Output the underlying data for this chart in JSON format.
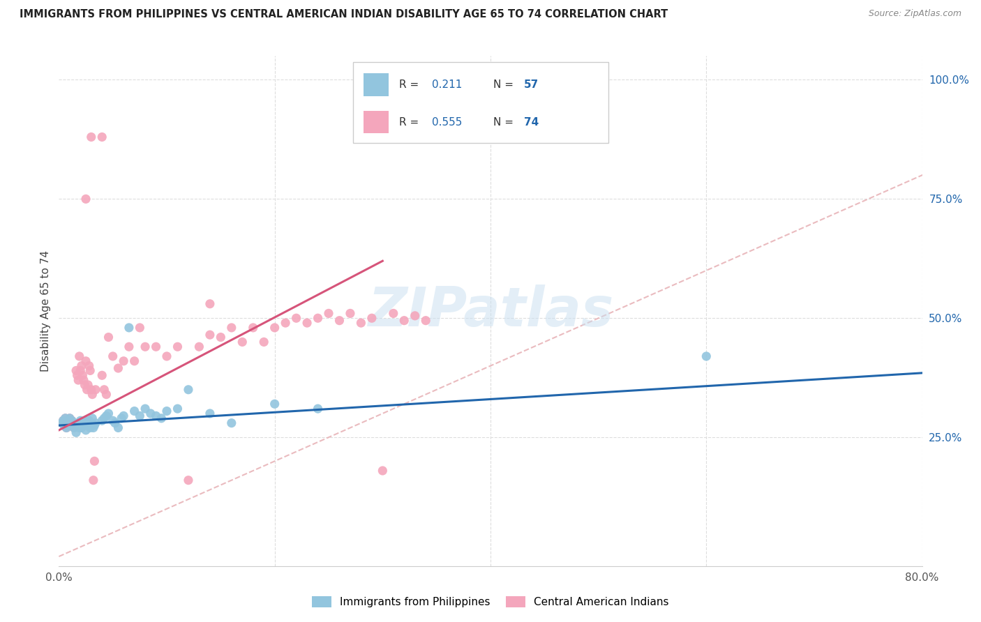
{
  "title": "IMMIGRANTS FROM PHILIPPINES VS CENTRAL AMERICAN INDIAN DISABILITY AGE 65 TO 74 CORRELATION CHART",
  "source": "Source: ZipAtlas.com",
  "ylabel": "Disability Age 65 to 74",
  "xlim": [
    0.0,
    0.8
  ],
  "ylim": [
    -0.02,
    1.05
  ],
  "xticks": [
    0.0,
    0.2,
    0.4,
    0.6,
    0.8
  ],
  "xticklabels": [
    "0.0%",
    "",
    "",
    "",
    "80.0%"
  ],
  "yticks_right": [
    0.25,
    0.5,
    0.75,
    1.0
  ],
  "ytick_labels_right": [
    "25.0%",
    "50.0%",
    "75.0%",
    "100.0%"
  ],
  "blue_R": 0.211,
  "blue_N": 57,
  "pink_R": 0.555,
  "pink_N": 74,
  "blue_color": "#92c5de",
  "pink_color": "#f4a6bc",
  "blue_line_color": "#2166ac",
  "pink_line_color": "#d6547a",
  "diagonal_color": "#e8b4b8",
  "watermark_color": "#c8dff0",
  "legend_label_blue": "Immigrants from Philippines",
  "legend_label_pink": "Central American Indians",
  "blue_line_start_y": 0.275,
  "blue_line_end_y": 0.385,
  "pink_line_start_y": 0.265,
  "pink_line_end_y": 0.62,
  "blue_points_x": [
    0.003,
    0.004,
    0.005,
    0.006,
    0.007,
    0.008,
    0.009,
    0.01,
    0.01,
    0.011,
    0.012,
    0.013,
    0.014,
    0.015,
    0.016,
    0.017,
    0.018,
    0.019,
    0.02,
    0.021,
    0.022,
    0.023,
    0.024,
    0.025,
    0.026,
    0.027,
    0.028,
    0.029,
    0.03,
    0.031,
    0.032,
    0.033,
    0.034,
    0.04,
    0.042,
    0.044,
    0.046,
    0.05,
    0.052,
    0.055,
    0.058,
    0.06,
    0.065,
    0.07,
    0.075,
    0.08,
    0.085,
    0.09,
    0.095,
    0.1,
    0.11,
    0.12,
    0.14,
    0.16,
    0.2,
    0.24,
    0.6
  ],
  "blue_points_y": [
    0.28,
    0.285,
    0.275,
    0.29,
    0.27,
    0.275,
    0.28,
    0.285,
    0.29,
    0.275,
    0.285,
    0.28,
    0.27,
    0.275,
    0.26,
    0.275,
    0.28,
    0.27,
    0.285,
    0.27,
    0.275,
    0.28,
    0.285,
    0.265,
    0.275,
    0.28,
    0.285,
    0.27,
    0.275,
    0.29,
    0.27,
    0.275,
    0.28,
    0.285,
    0.29,
    0.295,
    0.3,
    0.285,
    0.28,
    0.27,
    0.29,
    0.295,
    0.48,
    0.305,
    0.295,
    0.31,
    0.3,
    0.295,
    0.29,
    0.305,
    0.31,
    0.35,
    0.3,
    0.28,
    0.32,
    0.31,
    0.42
  ],
  "pink_points_x": [
    0.003,
    0.004,
    0.005,
    0.006,
    0.007,
    0.008,
    0.009,
    0.01,
    0.01,
    0.011,
    0.012,
    0.013,
    0.014,
    0.015,
    0.016,
    0.017,
    0.018,
    0.019,
    0.02,
    0.021,
    0.022,
    0.023,
    0.024,
    0.025,
    0.026,
    0.027,
    0.028,
    0.029,
    0.03,
    0.031,
    0.032,
    0.033,
    0.034,
    0.04,
    0.042,
    0.044,
    0.046,
    0.05,
    0.055,
    0.06,
    0.065,
    0.07,
    0.075,
    0.08,
    0.09,
    0.1,
    0.11,
    0.12,
    0.13,
    0.14,
    0.15,
    0.16,
    0.17,
    0.18,
    0.19,
    0.2,
    0.21,
    0.22,
    0.23,
    0.24,
    0.25,
    0.26,
    0.27,
    0.28,
    0.29,
    0.3,
    0.31,
    0.32,
    0.33,
    0.34,
    0.14,
    0.04,
    0.03,
    0.025
  ],
  "pink_points_y": [
    0.28,
    0.285,
    0.275,
    0.29,
    0.27,
    0.275,
    0.28,
    0.285,
    0.29,
    0.275,
    0.285,
    0.28,
    0.27,
    0.275,
    0.39,
    0.38,
    0.37,
    0.42,
    0.39,
    0.4,
    0.38,
    0.37,
    0.36,
    0.41,
    0.35,
    0.36,
    0.4,
    0.39,
    0.35,
    0.34,
    0.16,
    0.2,
    0.35,
    0.38,
    0.35,
    0.34,
    0.46,
    0.42,
    0.395,
    0.41,
    0.44,
    0.41,
    0.48,
    0.44,
    0.44,
    0.42,
    0.44,
    0.16,
    0.44,
    0.465,
    0.46,
    0.48,
    0.45,
    0.48,
    0.45,
    0.48,
    0.49,
    0.5,
    0.49,
    0.5,
    0.51,
    0.495,
    0.51,
    0.49,
    0.5,
    0.18,
    0.51,
    0.495,
    0.505,
    0.495,
    0.53,
    0.88,
    0.88,
    0.75
  ]
}
